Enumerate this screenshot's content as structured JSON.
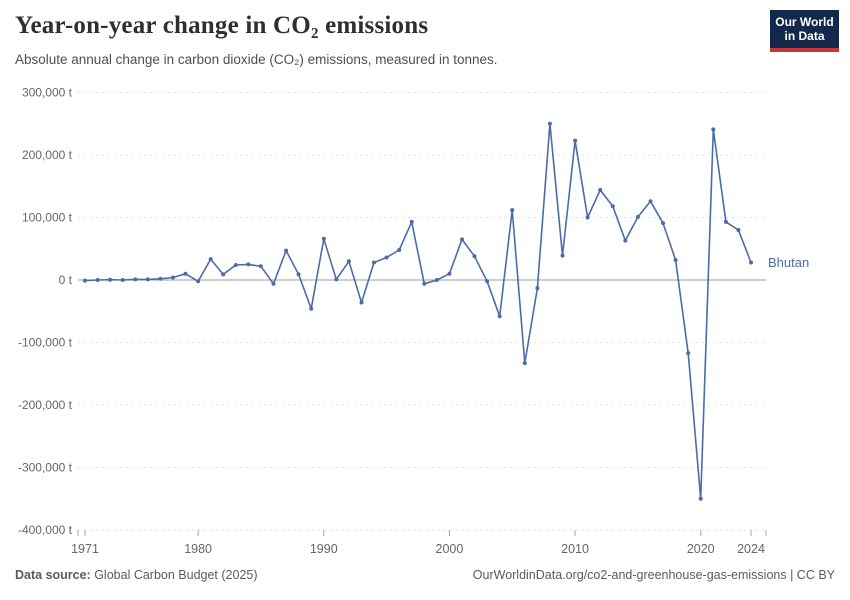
{
  "header": {
    "title": "Year-on-year change in CO₂ emissions",
    "subtitle": "Absolute annual change in carbon dioxide (CO₂) emissions, measured in tonnes."
  },
  "logo": {
    "line1": "Our World",
    "line2": "in Data",
    "bg_color": "#12294B",
    "accent_color": "#CB3335"
  },
  "footer": {
    "source_label": "Data source:",
    "source_value": " Global Carbon Budget (2025)",
    "rights": "OurWorldinData.org/co2-and-greenhouse-gas-emissions | CC BY"
  },
  "chart_data": {
    "type": "line",
    "title": "Year-on-year change in CO₂ emissions",
    "subtitle": "Absolute annual change in carbon dioxide (CO₂) emissions, measured in tonnes.",
    "entity": "Bhutan",
    "unit": "t",
    "line_color": "#4C6CA8",
    "grid": "horizontal dashed",
    "legend_position": "end-of-line label",
    "ylim": [
      -400000,
      300000
    ],
    "xlim": [
      1970.5,
      2025.2
    ],
    "x": [
      1971,
      1972,
      1973,
      1974,
      1975,
      1976,
      1977,
      1978,
      1979,
      1980,
      1981,
      1982,
      1983,
      1984,
      1985,
      1986,
      1987,
      1988,
      1989,
      1990,
      1991,
      1992,
      1993,
      1994,
      1995,
      1996,
      1997,
      1998,
      1999,
      2000,
      2001,
      2002,
      2003,
      2004,
      2005,
      2006,
      2007,
      2008,
      2009,
      2010,
      2011,
      2012,
      2013,
      2014,
      2015,
      2016,
      2017,
      2018,
      2019,
      2020,
      2021,
      2022,
      2023,
      2024
    ],
    "values": [
      -1000,
      0,
      500,
      0,
      1000,
      1000,
      2000,
      4000,
      10000,
      -2000,
      33500,
      9000,
      24000,
      25000,
      22000,
      -6000,
      47000,
      9000,
      -46000,
      66000,
      1000,
      30000,
      -36000,
      28000,
      36000,
      48000,
      93000,
      -6000,
      0,
      10000,
      65000,
      38000,
      -2000,
      -58000,
      112000,
      -133000,
      -13000,
      250000,
      39000,
      223000,
      100000,
      144000,
      118000,
      63000,
      101000,
      126000,
      91000,
      32000,
      -117000,
      -350000,
      241000,
      93000,
      80000,
      28000
    ],
    "yticks": [
      {
        "v": 300000,
        "label": "300,000 t"
      },
      {
        "v": 200000,
        "label": "200,000 t"
      },
      {
        "v": 100000,
        "label": "100,000 t"
      },
      {
        "v": 0,
        "label": "0 t"
      },
      {
        "v": -100000,
        "label": "-100,000 t"
      },
      {
        "v": -200000,
        "label": "-200,000 t"
      },
      {
        "v": -300000,
        "label": "-300,000 t"
      },
      {
        "v": -400000,
        "label": "-400,000 t"
      }
    ],
    "xticks": [
      {
        "v": 1971,
        "label": "1971"
      },
      {
        "v": 1980,
        "label": "1980"
      },
      {
        "v": 1990,
        "label": "1990"
      },
      {
        "v": 2000,
        "label": "2000"
      },
      {
        "v": 2010,
        "label": "2010"
      },
      {
        "v": 2020,
        "label": "2020"
      },
      {
        "v": 2024,
        "label": "2024"
      }
    ]
  }
}
